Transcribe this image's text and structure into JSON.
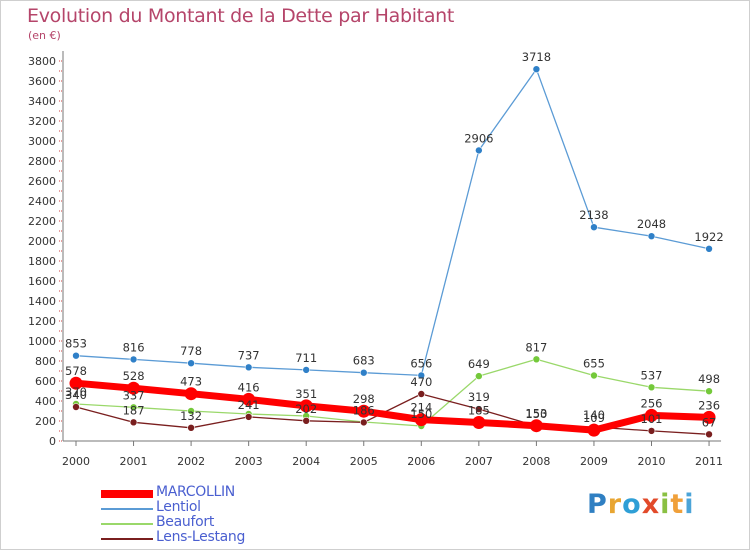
{
  "title": "Evolution du Montant de la Dette par Habitant",
  "subtitle": "(en €)",
  "logo": "Proxiti",
  "chart_data": {
    "type": "line",
    "x": [
      "2000",
      "2001",
      "2002",
      "2003",
      "2004",
      "2005",
      "2006",
      "2007",
      "2008",
      "2009",
      "2010",
      "2011"
    ],
    "ylim": [
      0,
      3800
    ],
    "yticks": [
      0,
      200,
      400,
      600,
      800,
      1000,
      1200,
      1400,
      1600,
      1800,
      2000,
      2200,
      2400,
      2600,
      2800,
      3000,
      3200,
      3400,
      3600,
      3800
    ],
    "grid": false,
    "legend_position": "bottom-left",
    "series": [
      {
        "name": "Lentiol",
        "color": "#5b9bd5",
        "marker": "#2f80c8",
        "width": 1.3,
        "r": 3.5,
        "values": [
          853,
          816,
          778,
          737,
          711,
          683,
          656,
          2906,
          3718,
          2138,
          2048,
          1922
        ]
      },
      {
        "name": "Beaufort",
        "color": "#9ad86a",
        "marker": "#74c93a",
        "width": 1.3,
        "r": 3.5,
        "values": [
          370,
          337,
          300,
          270,
          250,
          190,
          150,
          649,
          817,
          655,
          537,
          498
        ]
      },
      {
        "name": "Lens-Lestang",
        "color": "#7a1f1f",
        "marker": "#7a1f1f",
        "width": 1.3,
        "r": 3.5,
        "values": [
          340,
          187,
          132,
          241,
          202,
          186,
          470,
          319,
          150,
          140,
          101,
          67
        ]
      },
      {
        "name": "MARCOLLIN",
        "color": "#ff0000",
        "marker": "#ff0000",
        "width": 7,
        "r": 6.5,
        "values": [
          578,
          528,
          473,
          416,
          351,
          298,
          214,
          185,
          153,
          109,
          256,
          236
        ]
      }
    ],
    "labels": [
      {
        "x": "2000",
        "text": "853"
      },
      {
        "x": "2001",
        "text": "816"
      },
      {
        "x": "2002",
        "text": "778"
      },
      {
        "x": "2003",
        "text": "737"
      },
      {
        "x": "2004",
        "text": "711"
      },
      {
        "x": "2005",
        "text": "683"
      },
      {
        "x": "2006",
        "text": "656"
      },
      {
        "x": "2007",
        "text": "2906"
      },
      {
        "x": "2008",
        "text": "3718"
      },
      {
        "x": "2009",
        "text": "2138"
      },
      {
        "x": "2010",
        "text": "2048"
      },
      {
        "x": "2011",
        "text": "1922"
      },
      {
        "x": "2000",
        "text": "578"
      },
      {
        "x": "2001",
        "text": "528"
      },
      {
        "x": "2002",
        "text": "473"
      },
      {
        "x": "2003",
        "text": "416"
      },
      {
        "x": "2004",
        "text": "351"
      },
      {
        "x": "2005",
        "text": "298"
      },
      {
        "x": "2006",
        "text": "214"
      },
      {
        "x": "2007",
        "text": "185"
      },
      {
        "x": "2008",
        "text": "153"
      },
      {
        "x": "2009",
        "text": "109"
      },
      {
        "x": "2010",
        "text": "256"
      },
      {
        "x": "2011",
        "text": "236"
      },
      {
        "x": "2000",
        "text": "340"
      },
      {
        "x": "2000",
        "text": "370"
      },
      {
        "x": "2001",
        "text": "337"
      },
      {
        "x": "2001",
        "text": "187"
      },
      {
        "x": "2002",
        "text": "132"
      },
      {
        "x": "2003",
        "text": "241"
      },
      {
        "x": "2004",
        "text": "202"
      },
      {
        "x": "2005",
        "text": "186"
      },
      {
        "x": "2006",
        "text": "470"
      },
      {
        "x": "2006",
        "text": "150"
      },
      {
        "x": "2007",
        "text": "649"
      },
      {
        "x": "2007",
        "text": "319"
      },
      {
        "x": "2008",
        "text": "817"
      },
      {
        "x": "2008",
        "text": "150"
      },
      {
        "x": "2009",
        "text": "655"
      },
      {
        "x": "2009",
        "text": "140"
      },
      {
        "x": "2010",
        "text": "537"
      },
      {
        "x": "2010",
        "text": "101"
      },
      {
        "x": "2011",
        "text": "498"
      },
      {
        "x": "2011",
        "text": "67"
      }
    ]
  }
}
